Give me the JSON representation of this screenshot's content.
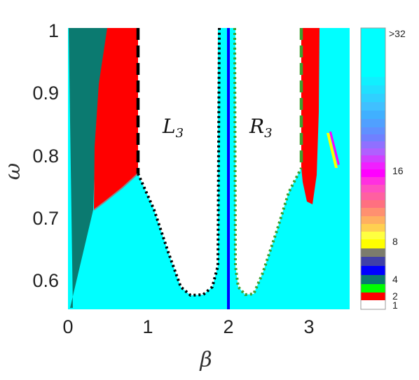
{
  "chart_data": {
    "type": "heatmap",
    "xlabel": "β",
    "ylabel": "ω",
    "xlim": [
      0,
      3.5
    ],
    "ylim": [
      0.55,
      1.0
    ],
    "x_ticks": [
      "0",
      "1",
      "2",
      "3"
    ],
    "y_ticks": [
      "0.6",
      "0.7",
      "0.8",
      "0.9",
      "1"
    ],
    "grid": false,
    "colorbar": {
      "labels": [
        {
          "value": 1,
          "text": "1"
        },
        {
          "value": 2,
          "text": "2"
        },
        {
          "value": 4,
          "text": "4"
        },
        {
          "value": 8,
          "text": "8"
        },
        {
          "value": 16,
          "text": "16"
        },
        {
          "value": 32,
          "text": ">32"
        }
      ],
      "colors": {
        "1": "#ffffff",
        "2": "#ff0000",
        "3": "#00ff00",
        "4": "#0b7a70",
        "5": "#0000ff",
        "8": "#ffff00",
        "16": "#ff00ff",
        "32": "#00ffff"
      }
    },
    "regions": [
      {
        "label": "L",
        "subscript": "3",
        "period": 1,
        "boundary_left": "dashed black",
        "boundary_bottom": "dotted black"
      },
      {
        "label": "R",
        "subscript": "3",
        "period": 1,
        "boundary_right": "dashed green",
        "boundary_bottom": "dotted green"
      }
    ],
    "vertical_line": {
      "x": 2.0,
      "color": "#0000ff"
    },
    "boundaries": {
      "L_left_dashed_x": 0.86,
      "L_bottom_min": [
        1.53,
        0.575
      ],
      "R_right_dashed_x": 2.9,
      "R_bottom_min": [
        2.25,
        0.575
      ]
    }
  }
}
